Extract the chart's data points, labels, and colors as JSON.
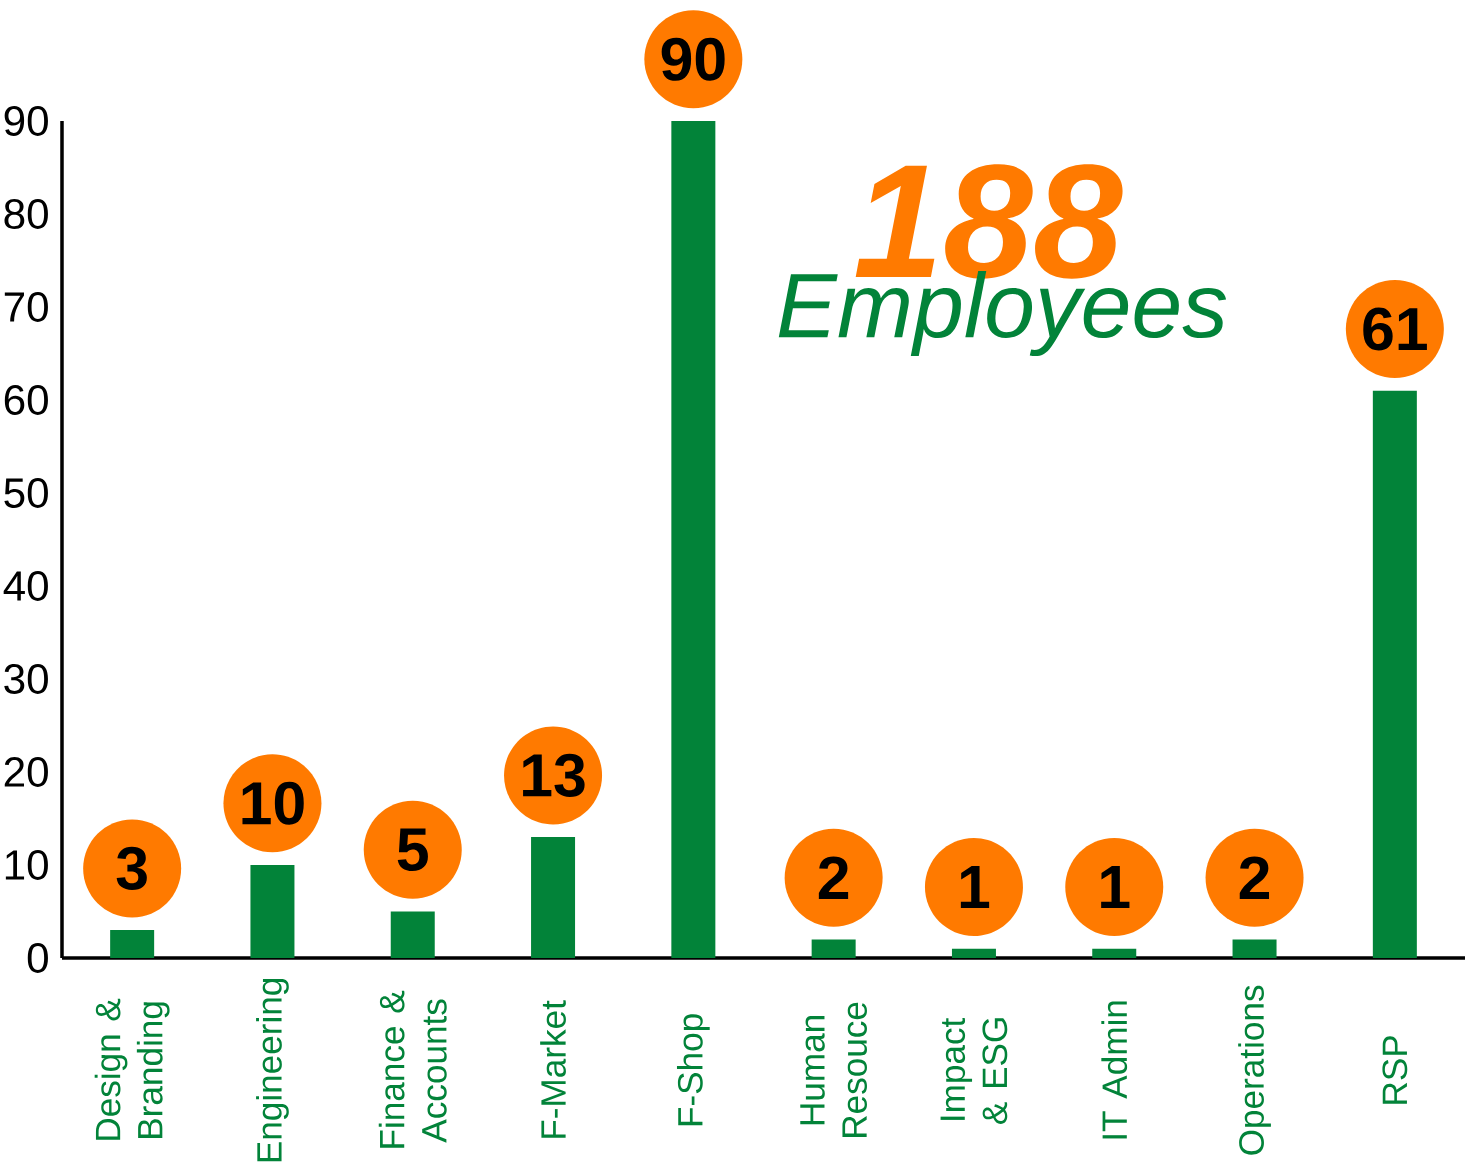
{
  "chart_data": {
    "type": "bar",
    "categories": [
      "Design & Branding",
      "Engineering",
      "Finance & Accounts",
      "F-Market",
      "F-Shop",
      "Human Resouce",
      "Impact & ESG",
      "IT Admin",
      "Operations",
      "RSP"
    ],
    "values": [
      3,
      10,
      5,
      13,
      90,
      2,
      1,
      1,
      2,
      61
    ],
    "color": "#028339",
    "ylim": [
      0,
      90
    ],
    "yticks": [
      0,
      10,
      20,
      30,
      40,
      50,
      60,
      70,
      80,
      90
    ],
    "data_labels": true,
    "grid": false,
    "annotations": [
      "188",
      "Employees"
    ]
  }
}
